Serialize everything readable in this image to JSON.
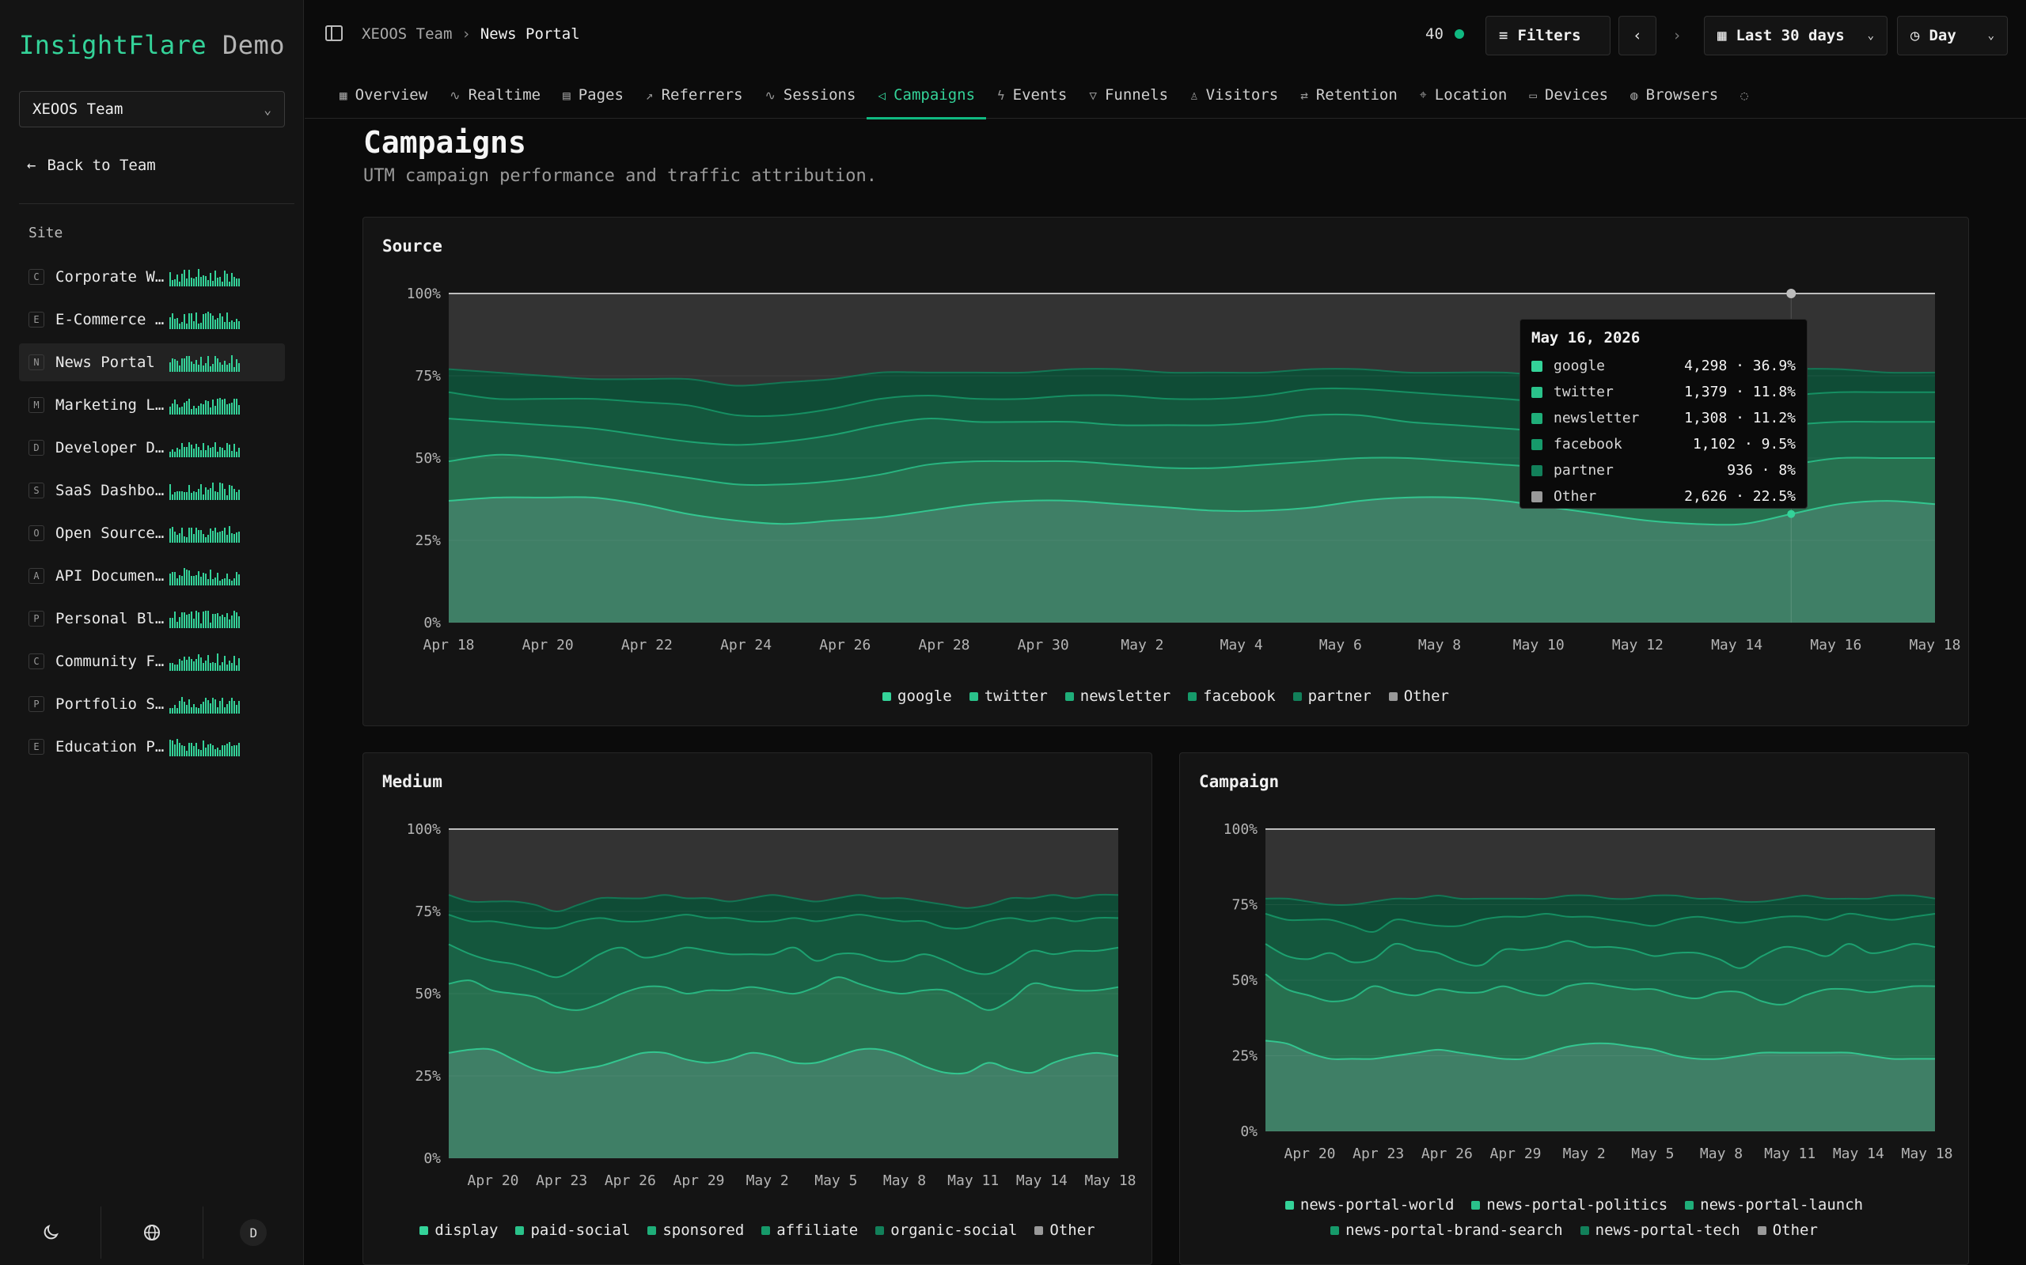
{
  "brand": {
    "name_accent": "InsightFlare",
    "name_rest": "Demo"
  },
  "team_select": {
    "value": "XEOOS Team"
  },
  "sidebar": {
    "back_label": "Back to Team",
    "site_label": "Site",
    "sites": [
      {
        "badge": "C",
        "name": "Corporate W…",
        "active": false
      },
      {
        "badge": "E",
        "name": "E-Commerce …",
        "active": false
      },
      {
        "badge": "N",
        "name": "News Portal",
        "active": true
      },
      {
        "badge": "M",
        "name": "Marketing L…",
        "active": false
      },
      {
        "badge": "D",
        "name": "Developer D…",
        "active": false
      },
      {
        "badge": "S",
        "name": "SaaS Dashbo…",
        "active": false
      },
      {
        "badge": "O",
        "name": "Open Source…",
        "active": false
      },
      {
        "badge": "A",
        "name": "API Documen…",
        "active": false
      },
      {
        "badge": "P",
        "name": "Personal Bl…",
        "active": false
      },
      {
        "badge": "C",
        "name": "Community F…",
        "active": false
      },
      {
        "badge": "P",
        "name": "Portfolio S…",
        "active": false
      },
      {
        "badge": "E",
        "name": "Education P…",
        "active": false
      }
    ],
    "bottom": {
      "theme_icon": "moon-icon",
      "lang_icon": "globe-icon",
      "avatar": "D"
    }
  },
  "topbar": {
    "breadcrumb": {
      "team": "XEOOS Team",
      "site": "News Portal"
    },
    "online_count": "40",
    "filters_label": "Filters",
    "range_label": "Last 30 days",
    "interval_label": "Day"
  },
  "tabs": [
    {
      "label": "Overview",
      "icon": "grid-icon",
      "active": false
    },
    {
      "label": "Realtime",
      "icon": "pulse-icon",
      "active": false
    },
    {
      "label": "Pages",
      "icon": "file-icon",
      "active": false
    },
    {
      "label": "Referrers",
      "icon": "share-icon",
      "active": false
    },
    {
      "label": "Sessions",
      "icon": "activity-icon",
      "active": false
    },
    {
      "label": "Campaigns",
      "icon": "megaphone-icon",
      "active": true
    },
    {
      "label": "Events",
      "icon": "bolt-icon",
      "active": false
    },
    {
      "label": "Funnels",
      "icon": "funnel-icon",
      "active": false
    },
    {
      "label": "Visitors",
      "icon": "user-icon",
      "active": false
    },
    {
      "label": "Retention",
      "icon": "repeat-icon",
      "active": false
    },
    {
      "label": "Location",
      "icon": "pin-icon",
      "active": false
    },
    {
      "label": "Devices",
      "icon": "monitor-icon",
      "active": false
    },
    {
      "label": "Browsers",
      "icon": "globe-icon",
      "active": false
    }
  ],
  "page": {
    "title": "Campaigns",
    "subtitle": "UTM campaign performance and traffic attribution."
  },
  "colors": {
    "s1": "#34d399",
    "s2": "#2ac28a",
    "s3": "#1fae79",
    "s4": "#169a6a",
    "s5": "#12805a",
    "other": "#9a9a9a",
    "accent": "#10b981"
  },
  "chart_data": [
    {
      "id": "source",
      "title": "Source",
      "type": "area",
      "stacked_percent": true,
      "y_ticks": [
        "0%",
        "25%",
        "50%",
        "75%",
        "100%"
      ],
      "ylim": [
        0,
        100
      ],
      "x_ticks": [
        "Apr 18",
        "Apr 20",
        "Apr 22",
        "Apr 24",
        "Apr 26",
        "Apr 28",
        "Apr 30",
        "May 2",
        "May 4",
        "May 6",
        "May 8",
        "May 10",
        "May 12",
        "May 14",
        "May 16",
        "May 18"
      ],
      "legend": [
        "google",
        "twitter",
        "newsletter",
        "facebook",
        "partner",
        "Other"
      ],
      "boundaries": [
        [
          37,
          38,
          38,
          38,
          36,
          33,
          31,
          30,
          31,
          32,
          34,
          36,
          37,
          37,
          36,
          35,
          34,
          34,
          35,
          37,
          38,
          38,
          37,
          35,
          33,
          31,
          30,
          30,
          33,
          36,
          37,
          36
        ],
        [
          49,
          51,
          50,
          48,
          46,
          44,
          42,
          42,
          43,
          45,
          48,
          49,
          49,
          49,
          48,
          47,
          47,
          48,
          49,
          50,
          50,
          49,
          48,
          47,
          46,
          45,
          45,
          46,
          48,
          50,
          50,
          50
        ],
        [
          62,
          61,
          60,
          59,
          57,
          55,
          54,
          55,
          57,
          60,
          62,
          61,
          61,
          61,
          60,
          60,
          60,
          61,
          63,
          63,
          61,
          60,
          59,
          58,
          57,
          57,
          57,
          58,
          60,
          61,
          61,
          61
        ],
        [
          70,
          68,
          68,
          68,
          67,
          66,
          63,
          63,
          65,
          68,
          69,
          68,
          68,
          69,
          69,
          68,
          68,
          69,
          71,
          71,
          70,
          69,
          68,
          67,
          67,
          66,
          66,
          67,
          69,
          70,
          70,
          70
        ],
        [
          77,
          76,
          75,
          74,
          74,
          74,
          72,
          73,
          74,
          76,
          76,
          76,
          76,
          77,
          77,
          76,
          76,
          76,
          77,
          77,
          76,
          76,
          76,
          75,
          75,
          75,
          75,
          76,
          77,
          77,
          76,
          76
        ]
      ],
      "tooltip": {
        "date": "May 16, 2026",
        "rows": [
          {
            "name": "google",
            "value": "4,298 · 36.9%"
          },
          {
            "name": "twitter",
            "value": "1,379 · 11.8%"
          },
          {
            "name": "newsletter",
            "value": "1,308 · 11.2%"
          },
          {
            "name": "facebook",
            "value": "1,102 · 9.5%"
          },
          {
            "name": "partner",
            "value": "936 · 8%"
          },
          {
            "name": "Other",
            "value": "2,626 · 22.5%"
          }
        ]
      }
    },
    {
      "id": "medium",
      "title": "Medium",
      "type": "area",
      "stacked_percent": true,
      "y_ticks": [
        "0%",
        "25%",
        "50%",
        "75%",
        "100%"
      ],
      "ylim": [
        0,
        100
      ],
      "x_ticks": [
        "Apr 20",
        "Apr 23",
        "Apr 26",
        "Apr 29",
        "May 2",
        "May 5",
        "May 8",
        "May 11",
        "May 14",
        "May 18"
      ],
      "legend": [
        "display",
        "paid-social",
        "sponsored",
        "affiliate",
        "organic-social",
        "Other"
      ],
      "boundaries": [
        [
          32,
          33,
          33,
          30,
          27,
          26,
          27,
          28,
          30,
          32,
          32,
          30,
          29,
          30,
          32,
          31,
          29,
          29,
          31,
          33,
          33,
          31,
          28,
          26,
          26,
          29,
          27,
          26,
          29,
          31,
          32,
          31
        ],
        [
          53,
          54,
          51,
          50,
          49,
          46,
          45,
          47,
          50,
          52,
          52,
          50,
          51,
          51,
          52,
          51,
          50,
          52,
          55,
          53,
          51,
          50,
          51,
          51,
          48,
          45,
          48,
          53,
          52,
          51,
          51,
          52
        ],
        [
          65,
          62,
          60,
          59,
          57,
          55,
          58,
          62,
          64,
          61,
          62,
          64,
          63,
          62,
          62,
          62,
          64,
          60,
          62,
          62,
          60,
          60,
          62,
          60,
          57,
          56,
          59,
          63,
          62,
          63,
          63,
          64
        ],
        [
          74,
          72,
          72,
          71,
          70,
          70,
          72,
          73,
          72,
          72,
          73,
          74,
          73,
          73,
          72,
          72,
          73,
          72,
          73,
          74,
          73,
          72,
          72,
          70,
          70,
          72,
          73,
          72,
          73,
          72,
          73,
          73
        ],
        [
          80,
          78,
          78,
          78,
          77,
          75,
          77,
          79,
          79,
          79,
          80,
          79,
          79,
          78,
          79,
          80,
          79,
          78,
          79,
          80,
          79,
          79,
          78,
          77,
          76,
          77,
          79,
          79,
          80,
          79,
          80,
          80
        ]
      ]
    },
    {
      "id": "campaign",
      "title": "Campaign",
      "type": "area",
      "stacked_percent": true,
      "y_ticks": [
        "0%",
        "25%",
        "50%",
        "75%",
        "100%"
      ],
      "ylim": [
        0,
        100
      ],
      "x_ticks": [
        "Apr 20",
        "Apr 23",
        "Apr 26",
        "Apr 29",
        "May 2",
        "May 5",
        "May 8",
        "May 11",
        "May 14",
        "May 18"
      ],
      "legend": [
        "news-portal-world",
        "news-portal-politics",
        "news-portal-launch",
        "news-portal-brand-search",
        "news-portal-tech",
        "Other"
      ],
      "boundaries": [
        [
          30,
          29,
          26,
          24,
          24,
          24,
          25,
          26,
          27,
          26,
          25,
          24,
          24,
          26,
          28,
          29,
          29,
          28,
          27,
          25,
          24,
          24,
          25,
          26,
          26,
          26,
          26,
          26,
          25,
          24,
          24,
          24
        ],
        [
          52,
          47,
          45,
          43,
          44,
          48,
          46,
          45,
          47,
          46,
          46,
          48,
          46,
          45,
          48,
          49,
          48,
          47,
          47,
          45,
          44,
          46,
          46,
          43,
          42,
          45,
          47,
          47,
          46,
          47,
          48,
          48
        ],
        [
          62,
          58,
          57,
          59,
          56,
          57,
          62,
          60,
          59,
          56,
          55,
          60,
          60,
          61,
          63,
          61,
          61,
          60,
          58,
          59,
          59,
          57,
          54,
          58,
          61,
          60,
          58,
          62,
          59,
          60,
          62,
          61
        ],
        [
          72,
          70,
          70,
          70,
          68,
          66,
          70,
          69,
          68,
          68,
          70,
          71,
          71,
          72,
          71,
          71,
          70,
          69,
          68,
          70,
          71,
          70,
          69,
          70,
          71,
          71,
          70,
          72,
          71,
          70,
          71,
          72
        ],
        [
          77,
          77,
          76,
          75,
          75,
          76,
          77,
          77,
          78,
          77,
          77,
          77,
          77,
          77,
          78,
          78,
          77,
          77,
          78,
          78,
          77,
          77,
          76,
          76,
          77,
          78,
          77,
          77,
          77,
          78,
          78,
          77
        ]
      ]
    }
  ]
}
